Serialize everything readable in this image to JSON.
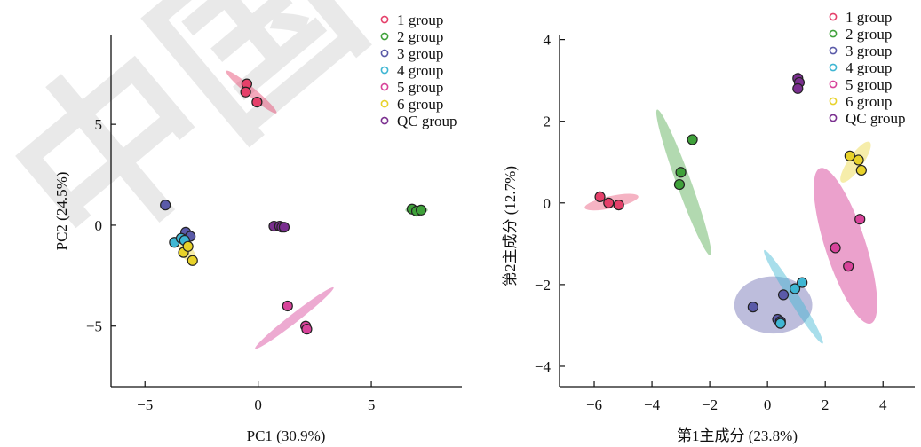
{
  "watermark": "中国",
  "colors": {
    "g1": "#e5406a",
    "g2": "#3fa13a",
    "g3": "#5a5aa8",
    "g4": "#3fb6d3",
    "g5": "#d8439a",
    "g6": "#e8d22a",
    "qc": "#7a2f8f"
  },
  "chart_data": [
    {
      "type": "scatter",
      "title": "",
      "xlabel": "PC1 (30.9%)",
      "ylabel": "PC2 (24.5%)",
      "xlim": [
        -6.5,
        9
      ],
      "ylim": [
        -8,
        9.4
      ],
      "xticks": [
        -5,
        0,
        5
      ],
      "yticks": [
        -5,
        0,
        5
      ],
      "xtick_labels": [
        "−5",
        "0",
        "5"
      ],
      "ytick_labels": [
        "−5",
        "0",
        "5"
      ],
      "grid": false,
      "legend_position": "top-right",
      "series": [
        {
          "name": "1 group",
          "color_key": "g1",
          "points": [
            [
              -0.5,
              7.0
            ],
            [
              -0.55,
              6.6
            ],
            [
              -0.05,
              6.1
            ]
          ],
          "ellipse": {
            "center": [
              -0.3,
              6.6
            ],
            "rx": 1.45,
            "ry": 0.22,
            "angle_deg": -40,
            "opacity": 0.45
          }
        },
        {
          "name": "2 group",
          "color_key": "g2",
          "points": [
            [
              6.8,
              0.8
            ],
            [
              7.0,
              0.7
            ],
            [
              7.2,
              0.75
            ]
          ],
          "ellipse": {
            "center": [
              7.0,
              0.75
            ],
            "rx": 0.5,
            "ry": 0.18,
            "angle_deg": 0,
            "opacity": 0.45
          }
        },
        {
          "name": "3 group",
          "color_key": "g3",
          "points": [
            [
              -4.1,
              1.0
            ],
            [
              -3.2,
              -0.35
            ],
            [
              -3.0,
              -0.55
            ]
          ],
          "ellipse": null
        },
        {
          "name": "4 group",
          "color_key": "g4",
          "points": [
            [
              -3.7,
              -0.85
            ],
            [
              -3.4,
              -0.65
            ],
            [
              -3.25,
              -0.75
            ]
          ],
          "ellipse": null
        },
        {
          "name": "5 group",
          "color_key": "g5",
          "points": [
            [
              1.3,
              -4.0
            ],
            [
              2.1,
              -5.0
            ],
            [
              2.15,
              -5.15
            ]
          ],
          "ellipse": {
            "center": [
              1.6,
              -4.6
            ],
            "rx": 2.2,
            "ry": 0.22,
            "angle_deg": 38,
            "opacity": 0.45
          }
        },
        {
          "name": "6 group",
          "color_key": "g6",
          "points": [
            [
              -3.3,
              -1.35
            ],
            [
              -3.1,
              -1.05
            ],
            [
              -2.9,
              -1.75
            ]
          ],
          "ellipse": {
            "center": [
              -3.1,
              -1.4
            ],
            "rx": 0.55,
            "ry": 0.3,
            "angle_deg": -55,
            "opacity": 0.4
          }
        },
        {
          "name": "QC group",
          "color_key": "qc",
          "points": [
            [
              0.7,
              -0.05
            ],
            [
              0.95,
              -0.05
            ],
            [
              1.05,
              -0.1
            ],
            [
              1.15,
              -0.1
            ]
          ],
          "ellipse": {
            "center": [
              0.95,
              -0.08
            ],
            "rx": 0.4,
            "ry": 0.12,
            "angle_deg": 0,
            "opacity": 0.35
          }
        }
      ]
    },
    {
      "type": "scatter",
      "title": "",
      "xlabel": "第1主成分 (23.8%)",
      "ylabel": "第2主成分 (12.7%)",
      "xlim": [
        -7.2,
        5.1
      ],
      "ylim": [
        -4.5,
        4.1
      ],
      "xticks": [
        -6,
        -4,
        -2,
        0,
        2,
        4
      ],
      "yticks": [
        -4,
        -2,
        0,
        2,
        4
      ],
      "xtick_labels": [
        "−6",
        "−4",
        "−2",
        "0",
        "2",
        "4"
      ],
      "ytick_labels": [
        "−4",
        "−2",
        "0",
        "2",
        "4"
      ],
      "grid": false,
      "legend_position": "top-right",
      "series": [
        {
          "name": "1 group",
          "color_key": "g1",
          "points": [
            [
              -5.8,
              0.15
            ],
            [
              -5.5,
              0.0
            ],
            [
              -5.15,
              -0.05
            ]
          ],
          "ellipse": {
            "center": [
              -5.4,
              0.02
            ],
            "rx": 0.95,
            "ry": 0.15,
            "angle_deg": 12,
            "opacity": 0.4
          }
        },
        {
          "name": "2 group",
          "color_key": "g2",
          "points": [
            [
              -3.0,
              0.75
            ],
            [
              -3.05,
              0.45
            ],
            [
              -2.6,
              1.55
            ]
          ],
          "ellipse": {
            "center": [
              -2.9,
              0.5
            ],
            "rx": 0.25,
            "ry": 1.9,
            "angle_deg": 20,
            "opacity": 0.4
          }
        },
        {
          "name": "3 group",
          "color_key": "g3",
          "points": [
            [
              -0.5,
              -2.55
            ],
            [
              0.35,
              -2.85
            ],
            [
              0.45,
              -2.9
            ],
            [
              0.55,
              -2.25
            ]
          ],
          "ellipse": {
            "center": [
              0.2,
              -2.5
            ],
            "rx": 1.35,
            "ry": 0.7,
            "angle_deg": 0,
            "opacity": 0.4
          }
        },
        {
          "name": "4 group",
          "color_key": "g4",
          "points": [
            [
              0.95,
              -2.1
            ],
            [
              1.2,
              -1.95
            ],
            [
              0.45,
              -2.95
            ]
          ],
          "ellipse": {
            "center": [
              0.9,
              -2.3
            ],
            "rx": 0.18,
            "ry": 1.35,
            "angle_deg": 32,
            "opacity": 0.45
          }
        },
        {
          "name": "5 group",
          "color_key": "g5",
          "points": [
            [
              3.2,
              -0.4
            ],
            [
              2.35,
              -1.1
            ],
            [
              2.8,
              -1.55
            ]
          ],
          "ellipse": {
            "center": [
              2.7,
              -1.05
            ],
            "rx": 0.7,
            "ry": 2.0,
            "angle_deg": 18,
            "opacity": 0.5
          }
        },
        {
          "name": "6 group",
          "color_key": "g6",
          "points": [
            [
              2.85,
              1.15
            ],
            [
              3.15,
              1.05
            ],
            [
              3.25,
              0.8
            ]
          ],
          "ellipse": {
            "center": [
              3.05,
              1.0
            ],
            "rx": 0.25,
            "ry": 0.6,
            "angle_deg": -35,
            "opacity": 0.4
          }
        },
        {
          "name": "QC group",
          "color_key": "qc",
          "points": [
            [
              1.05,
              3.05
            ],
            [
              1.1,
              2.95
            ],
            [
              1.05,
              2.8
            ]
          ],
          "ellipse": {
            "center": [
              1.07,
              2.95
            ],
            "rx": 0.12,
            "ry": 0.25,
            "angle_deg": 0,
            "opacity": 0.3
          }
        }
      ]
    }
  ]
}
